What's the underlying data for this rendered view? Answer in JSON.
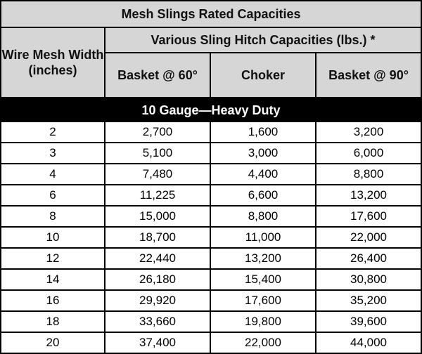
{
  "table": {
    "title": "Mesh Slings Rated Capacities",
    "width_header": "Wire Mesh Width (inches)",
    "group_header": "Various Sling Hitch Capacities (lbs.) *",
    "columns": [
      "Basket @ 60°",
      "Choker",
      "Basket @ 90°"
    ],
    "section_label": "10 Gauge—Heavy Duty",
    "rows": [
      [
        "2",
        "2,700",
        "1,600",
        "3,200"
      ],
      [
        "3",
        "5,100",
        "3,000",
        "6,000"
      ],
      [
        "4",
        "7,480",
        "4,400",
        "8,800"
      ],
      [
        "6",
        "11,225",
        "6,600",
        "13,200"
      ],
      [
        "8",
        "15,000",
        "8,800",
        "17,600"
      ],
      [
        "10",
        "18,700",
        "11,000",
        "22,000"
      ],
      [
        "12",
        "22,440",
        "13,200",
        "26,400"
      ],
      [
        "14",
        "26,180",
        "15,400",
        "30,800"
      ],
      [
        "16",
        "29,920",
        "17,600",
        "35,200"
      ],
      [
        "18",
        "33,660",
        "19,800",
        "39,600"
      ],
      [
        "20",
        "37,400",
        "22,000",
        "44,000"
      ]
    ]
  }
}
